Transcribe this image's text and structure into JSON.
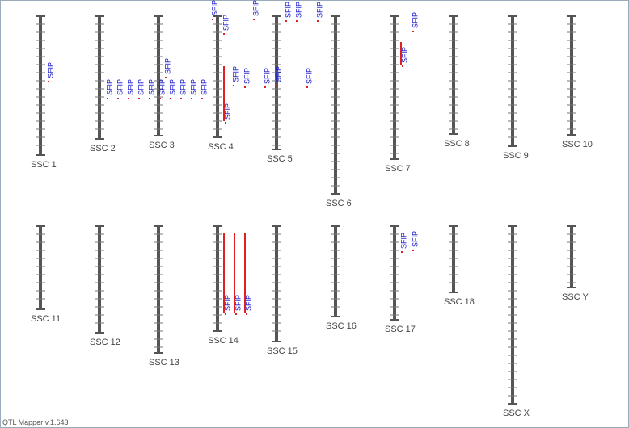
{
  "chromosomes": [
    {
      "label": "SSC 1",
      "qtls": [
        "SFIP"
      ]
    },
    {
      "label": "SSC 2",
      "qtls": [
        "SFIP",
        "SFIP",
        "SFIP",
        "SFIP",
        "SFIP"
      ]
    },
    {
      "label": "SSC 3",
      "qtls": [
        "SFIP",
        "SFIP",
        "SFIP",
        "SFIP",
        "SFIP",
        "SFIP"
      ]
    },
    {
      "label": "SSC 4",
      "qtls": [
        "SFIP",
        "SFIP",
        "SFIP",
        "SFIP",
        "SFIP"
      ]
    },
    {
      "label": "SSC 5",
      "qtls": [
        "SFIP",
        "SFIP",
        "SFIP",
        "SFIP",
        "SFIP",
        "SFIP",
        "SFIP"
      ]
    },
    {
      "label": "SSC 6",
      "qtls": []
    },
    {
      "label": "SSC 7",
      "qtls": [
        "SFIP",
        "SFIP"
      ]
    },
    {
      "label": "SSC 8",
      "qtls": []
    },
    {
      "label": "SSC 9",
      "qtls": []
    },
    {
      "label": "SSC 10",
      "qtls": []
    },
    {
      "label": "SSC 11",
      "qtls": []
    },
    {
      "label": "SSC 12",
      "qtls": []
    },
    {
      "label": "SSC 13",
      "qtls": []
    },
    {
      "label": "SSC 14",
      "qtls": [
        "SFIP",
        "SFIP",
        "SFIP"
      ]
    },
    {
      "label": "SSC 15",
      "qtls": []
    },
    {
      "label": "SSC 16",
      "qtls": []
    },
    {
      "label": "SSC 17",
      "qtls": [
        "SFIP",
        "SFIP"
      ]
    },
    {
      "label": "SSC 18",
      "qtls": []
    },
    {
      "label": "SSC X",
      "qtls": []
    },
    {
      "label": "SSC Y",
      "qtls": []
    }
  ],
  "footer": "QTL Mapper v.1.643"
}
